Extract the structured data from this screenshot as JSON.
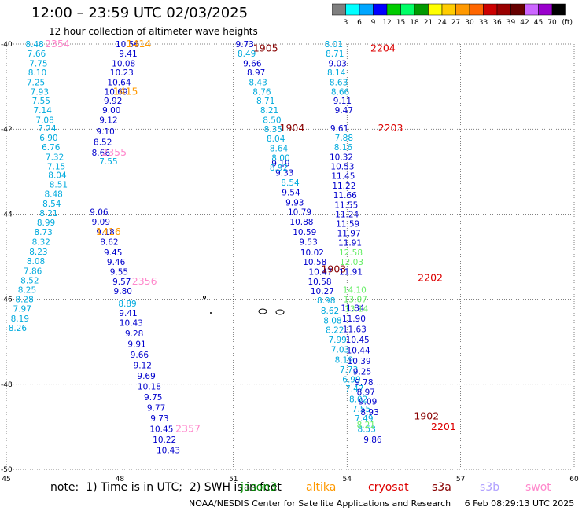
{
  "header": {
    "title": "12:00 – 23:59 UTC 02/03/2025",
    "subtitle": "12 hour collection of altimeter wave heights"
  },
  "colorbar": {
    "unit": "(ft)",
    "ticks": [
      "3",
      "6",
      "9",
      "12",
      "15",
      "18",
      "21",
      "24",
      "27",
      "30",
      "33",
      "36",
      "39",
      "42",
      "45",
      "70"
    ],
    "colors": [
      "#7f7f7f",
      "#00ffff",
      "#00a6ff",
      "#0000ff",
      "#00cc00",
      "#00ff66",
      "#009900",
      "#ffff00",
      "#ffcc00",
      "#ff9900",
      "#ff6600",
      "#cc0000",
      "#990000",
      "#660000",
      "#cc66ff",
      "#9900cc",
      "#000000"
    ]
  },
  "footer": {
    "note": "note:  1) Time is in UTC;  2) SWH is in feet",
    "credit": "NOAA/NESDIS Center for Satellite Applications and Research     6 Feb 08:29:13 UTC 2025",
    "satellites": [
      {
        "name": "jason3",
        "color": "#008800"
      },
      {
        "name": "altika",
        "color": "#ff9900"
      },
      {
        "name": "cryosat",
        "color": "#dd0000"
      },
      {
        "name": "s3a",
        "color": "#880000"
      },
      {
        "name": "s3b",
        "color": "#b0a0ff"
      },
      {
        "name": "swot",
        "color": "#ff88cc"
      }
    ]
  },
  "chart_data": {
    "type": "scatter",
    "xticks": [
      "45",
      "48",
      "51",
      "54",
      "57",
      "60"
    ],
    "yticks": [
      "-40",
      "-42",
      "-44",
      "-46",
      "-48",
      "-50"
    ],
    "xlim": [
      45,
      60
    ],
    "ylim": [
      -50,
      -40
    ],
    "grid": true,
    "tracks": [
      {
        "color": "#00aadd",
        "points": [
          {
            "x": 45.75,
            "y": -40.0,
            "v": "8.48"
          },
          {
            "x": 45.8,
            "y": -40.22,
            "v": "7.66"
          },
          {
            "x": 45.85,
            "y": -40.45,
            "v": "7.75"
          },
          {
            "x": 45.82,
            "y": -40.67,
            "v": "8.10"
          },
          {
            "x": 45.78,
            "y": -40.9,
            "v": "7.25"
          },
          {
            "x": 45.88,
            "y": -41.12,
            "v": "7.93"
          },
          {
            "x": 45.92,
            "y": -41.33,
            "v": "7.55"
          },
          {
            "x": 45.96,
            "y": -41.55,
            "v": "7.14"
          },
          {
            "x": 46.02,
            "y": -41.78,
            "v": "7.08"
          },
          {
            "x": 46.08,
            "y": -41.98,
            "v": "7.24"
          },
          {
            "x": 46.12,
            "y": -42.2,
            "v": "6.90"
          },
          {
            "x": 46.18,
            "y": -42.42,
            "v": "6.76"
          },
          {
            "x": 46.28,
            "y": -42.65,
            "v": "7.32"
          },
          {
            "x": 46.32,
            "y": -42.87,
            "v": "7.15"
          },
          {
            "x": 46.35,
            "y": -43.08,
            "v": "8.04"
          },
          {
            "x": 46.38,
            "y": -43.3,
            "v": "8.51"
          },
          {
            "x": 46.25,
            "y": -43.52,
            "v": "8.48"
          },
          {
            "x": 46.2,
            "y": -43.75,
            "v": "8.54"
          },
          {
            "x": 46.12,
            "y": -43.97,
            "v": "8.21"
          },
          {
            "x": 46.05,
            "y": -44.2,
            "v": "8.99"
          },
          {
            "x": 45.98,
            "y": -44.42,
            "v": "8.73"
          },
          {
            "x": 45.92,
            "y": -44.65,
            "v": "8.32"
          },
          {
            "x": 45.85,
            "y": -44.88,
            "v": "8.23"
          },
          {
            "x": 45.78,
            "y": -45.1,
            "v": "8.08"
          },
          {
            "x": 45.7,
            "y": -45.33,
            "v": "7.86"
          },
          {
            "x": 45.62,
            "y": -45.55,
            "v": "8.52"
          },
          {
            "x": 45.55,
            "y": -45.78,
            "v": "8.25"
          },
          {
            "x": 45.48,
            "y": -46.0,
            "v": "8.28"
          },
          {
            "x": 45.42,
            "y": -46.22,
            "v": "7.97"
          },
          {
            "x": 45.36,
            "y": -46.45,
            "v": "8.19"
          },
          {
            "x": 45.3,
            "y": -46.67,
            "v": "8.26"
          }
        ]
      },
      {
        "color": "#0000cc",
        "points": [
          {
            "x": 48.2,
            "y": -40.0,
            "v": "10.56"
          },
          {
            "x": 48.22,
            "y": -40.22,
            "v": "9.41"
          },
          {
            "x": 48.1,
            "y": -40.45,
            "v": "10.08"
          },
          {
            "x": 48.05,
            "y": -40.67,
            "v": "10.23"
          },
          {
            "x": 47.98,
            "y": -40.9,
            "v": "10.64"
          },
          {
            "x": 47.9,
            "y": -41.12,
            "v": "10.69"
          },
          {
            "x": 47.82,
            "y": -41.33,
            "v": "9.92"
          },
          {
            "x": 47.78,
            "y": -41.55,
            "v": "9.00"
          },
          {
            "x": 47.7,
            "y": -41.78,
            "v": "9.12"
          },
          {
            "x": 47.62,
            "y": -42.05,
            "v": "9.10"
          },
          {
            "x": 47.55,
            "y": -42.3,
            "v": "8.52"
          },
          {
            "x": 47.5,
            "y": -42.55,
            "v": "8.66"
          },
          {
            "x": 47.45,
            "y": -43.95,
            "v": "9.06"
          },
          {
            "x": 47.5,
            "y": -44.18,
            "v": "9.09"
          },
          {
            "x": 47.62,
            "y": -44.42,
            "v": "9.18"
          },
          {
            "x": 47.72,
            "y": -44.65,
            "v": "8.62"
          },
          {
            "x": 47.82,
            "y": -44.9,
            "v": "9.45"
          },
          {
            "x": 47.9,
            "y": -45.12,
            "v": "9.46"
          },
          {
            "x": 47.98,
            "y": -45.35,
            "v": "9.55"
          },
          {
            "x": 48.05,
            "y": -45.58,
            "v": "9.57"
          },
          {
            "x": 48.08,
            "y": -45.8,
            "v": "9.80"
          },
          {
            "x": 48.22,
            "y": -46.32,
            "v": "9.41"
          },
          {
            "x": 48.3,
            "y": -46.55,
            "v": "10.43"
          },
          {
            "x": 48.38,
            "y": -46.8,
            "v": "9.28"
          },
          {
            "x": 48.45,
            "y": -47.05,
            "v": "9.91"
          },
          {
            "x": 48.52,
            "y": -47.3,
            "v": "9.66"
          },
          {
            "x": 48.6,
            "y": -47.55,
            "v": "9.12"
          },
          {
            "x": 48.7,
            "y": -47.8,
            "v": "9.69"
          },
          {
            "x": 48.78,
            "y": -48.05,
            "v": "10.18"
          },
          {
            "x": 48.88,
            "y": -48.3,
            "v": "9.75"
          },
          {
            "x": 48.96,
            "y": -48.55,
            "v": "9.77"
          },
          {
            "x": 49.05,
            "y": -48.8,
            "v": "9.73"
          },
          {
            "x": 49.1,
            "y": -49.05,
            "v": "10.45"
          },
          {
            "x": 49.18,
            "y": -49.3,
            "v": "10.22"
          },
          {
            "x": 49.28,
            "y": -49.55,
            "v": "10.43"
          }
        ]
      },
      {
        "color": "#00aadd",
        "points": [
          {
            "x": 47.7,
            "y": -42.75,
            "v": "7.55"
          },
          {
            "x": 48.2,
            "y": -46.1,
            "v": "8.89"
          }
        ]
      },
      {
        "color": "#0000cc",
        "points": [
          {
            "x": 51.3,
            "y": -40.0,
            "v": "9.73"
          },
          {
            "x": 51.5,
            "y": -40.45,
            "v": "9.66"
          },
          {
            "x": 51.6,
            "y": -40.67,
            "v": "8.97"
          },
          {
            "x": 52.25,
            "y": -42.8,
            "v": "9.19"
          },
          {
            "x": 52.35,
            "y": -43.02,
            "v": "9.33"
          },
          {
            "x": 52.52,
            "y": -43.48,
            "v": "9.54"
          },
          {
            "x": 52.62,
            "y": -43.72,
            "v": "9.93"
          },
          {
            "x": 52.75,
            "y": -43.95,
            "v": "10.79"
          },
          {
            "x": 52.8,
            "y": -44.18,
            "v": "10.88"
          },
          {
            "x": 52.88,
            "y": -44.42,
            "v": "10.59"
          },
          {
            "x": 52.98,
            "y": -44.65,
            "v": "9.53"
          },
          {
            "x": 53.08,
            "y": -44.9,
            "v": "10.02"
          },
          {
            "x": 53.15,
            "y": -45.12,
            "v": "10.58"
          },
          {
            "x": 53.3,
            "y": -45.35,
            "v": "10.47"
          },
          {
            "x": 53.28,
            "y": -45.58,
            "v": "10.58"
          },
          {
            "x": 53.35,
            "y": -45.8,
            "v": "10.27"
          }
        ]
      },
      {
        "color": "#00aadd",
        "points": [
          {
            "x": 51.35,
            "y": -40.22,
            "v": "8.49"
          },
          {
            "x": 51.65,
            "y": -40.9,
            "v": "8.43"
          },
          {
            "x": 51.75,
            "y": -41.12,
            "v": "8.76"
          },
          {
            "x": 51.85,
            "y": -41.33,
            "v": "8.71"
          },
          {
            "x": 51.95,
            "y": -41.55,
            "v": "8.21"
          },
          {
            "x": 52.02,
            "y": -41.78,
            "v": "8.50"
          },
          {
            "x": 52.05,
            "y": -42.0,
            "v": "8.35"
          },
          {
            "x": 52.12,
            "y": -42.22,
            "v": "8.04"
          },
          {
            "x": 52.2,
            "y": -42.45,
            "v": "8.64"
          },
          {
            "x": 52.25,
            "y": -42.67,
            "v": "8.00"
          },
          {
            "x": 52.2,
            "y": -42.9,
            "v": "8.92"
          },
          {
            "x": 52.5,
            "y": -43.25,
            "v": "8.54"
          },
          {
            "x": 53.45,
            "y": -46.03,
            "v": "8.98"
          },
          {
            "x": 53.55,
            "y": -46.27,
            "v": "8.62"
          },
          {
            "x": 53.62,
            "y": -46.5,
            "v": "8.08"
          },
          {
            "x": 53.68,
            "y": -46.72,
            "v": "8.22"
          },
          {
            "x": 53.75,
            "y": -46.95,
            "v": "7.99"
          },
          {
            "x": 53.82,
            "y": -47.18,
            "v": "7.03"
          },
          {
            "x": 53.92,
            "y": -47.42,
            "v": "8.19"
          },
          {
            "x": 54.05,
            "y": -47.65,
            "v": "7.73"
          },
          {
            "x": 54.12,
            "y": -47.88,
            "v": "6.99"
          },
          {
            "x": 54.2,
            "y": -48.1,
            "v": "7.47"
          },
          {
            "x": 54.3,
            "y": -48.35,
            "v": "8.02"
          },
          {
            "x": 54.38,
            "y": -48.58,
            "v": "7.55"
          },
          {
            "x": 54.45,
            "y": -48.8,
            "v": "7.49"
          },
          {
            "x": 54.52,
            "y": -49.05,
            "v": "8.53"
          }
        ]
      },
      {
        "color": "#00aadd",
        "points": [
          {
            "x": 53.65,
            "y": -40.0,
            "v": "8.01"
          },
          {
            "x": 53.68,
            "y": -40.22,
            "v": "8.71"
          },
          {
            "x": 53.72,
            "y": -40.67,
            "v": "8.14"
          },
          {
            "x": 53.78,
            "y": -40.9,
            "v": "8.63"
          },
          {
            "x": 53.82,
            "y": -41.12,
            "v": "8.66"
          },
          {
            "x": 53.92,
            "y": -42.2,
            "v": "7.88"
          },
          {
            "x": 53.9,
            "y": -42.42,
            "v": "8.16"
          }
        ]
      },
      {
        "color": "#0000cc",
        "points": [
          {
            "x": 53.75,
            "y": -40.45,
            "v": "9.03"
          },
          {
            "x": 53.88,
            "y": -41.33,
            "v": "9.11"
          },
          {
            "x": 53.92,
            "y": -41.55,
            "v": "9.47"
          },
          {
            "x": 53.8,
            "y": -41.98,
            "v": "9.61"
          },
          {
            "x": 53.85,
            "y": -42.65,
            "v": "10.32"
          },
          {
            "x": 53.88,
            "y": -42.87,
            "v": "10.53"
          },
          {
            "x": 53.9,
            "y": -43.1,
            "v": "11.45"
          },
          {
            "x": 53.92,
            "y": -43.33,
            "v": "11.22"
          },
          {
            "x": 53.95,
            "y": -43.55,
            "v": "11.66"
          },
          {
            "x": 53.98,
            "y": -43.78,
            "v": "11.55"
          },
          {
            "x": 54.0,
            "y": -44.0,
            "v": "11.24"
          },
          {
            "x": 54.02,
            "y": -44.22,
            "v": "11.59"
          },
          {
            "x": 54.05,
            "y": -44.45,
            "v": "11.97"
          },
          {
            "x": 54.08,
            "y": -44.67,
            "v": "11.91"
          },
          {
            "x": 54.1,
            "y": -45.35,
            "v": "11.91"
          },
          {
            "x": 54.15,
            "y": -46.2,
            "v": "11.84"
          },
          {
            "x": 54.18,
            "y": -46.45,
            "v": "11.90"
          },
          {
            "x": 54.2,
            "y": -46.7,
            "v": "11.63"
          },
          {
            "x": 54.28,
            "y": -46.95,
            "v": "10.45"
          },
          {
            "x": 54.3,
            "y": -47.2,
            "v": "10.44"
          },
          {
            "x": 54.32,
            "y": -47.45,
            "v": "10.39"
          },
          {
            "x": 54.4,
            "y": -47.7,
            "v": "9.25"
          },
          {
            "x": 54.45,
            "y": -47.95,
            "v": "9.78"
          },
          {
            "x": 54.5,
            "y": -48.18,
            "v": "8.97"
          },
          {
            "x": 54.55,
            "y": -48.4,
            "v": "9.09"
          },
          {
            "x": 54.6,
            "y": -48.65,
            "v": "8.93"
          },
          {
            "x": 54.68,
            "y": -49.3,
            "v": "9.86"
          }
        ]
      },
      {
        "color": "#66ee66",
        "points": [
          {
            "x": 54.1,
            "y": -44.9,
            "v": "12.58"
          },
          {
            "x": 54.12,
            "y": -45.12,
            "v": "12.03"
          },
          {
            "x": 54.2,
            "y": -45.78,
            "v": "14.10"
          },
          {
            "x": 54.22,
            "y": -46.0,
            "v": "13.07"
          },
          {
            "x": 54.25,
            "y": -46.22,
            "v": "13.14"
          },
          {
            "x": 54.5,
            "y": -48.95,
            "v": "8.21"
          }
        ]
      }
    ],
    "time_labels": [
      {
        "x": 48.5,
        "y": -40.0,
        "v": "1414",
        "color": "#ff9900"
      },
      {
        "x": 48.15,
        "y": -41.12,
        "v": "1415",
        "color": "#ff9900"
      },
      {
        "x": 47.7,
        "y": -44.42,
        "v": "1416",
        "color": "#ff9900"
      },
      {
        "x": 46.35,
        "y": -40.0,
        "v": "2354",
        "color": "#ff88cc"
      },
      {
        "x": 47.85,
        "y": -42.55,
        "v": "2355",
        "color": "#ff88cc"
      },
      {
        "x": 48.65,
        "y": -45.58,
        "v": "2356",
        "color": "#ff88cc"
      },
      {
        "x": 49.8,
        "y": -49.05,
        "v": "2357",
        "color": "#ff88cc"
      },
      {
        "x": 51.85,
        "y": -40.1,
        "v": "1905",
        "color": "#880000"
      },
      {
        "x": 52.55,
        "y": -41.98,
        "v": "1904",
        "color": "#880000"
      },
      {
        "x": 53.65,
        "y": -45.3,
        "v": "1903",
        "color": "#880000"
      },
      {
        "x": 56.1,
        "y": -48.75,
        "v": "1902",
        "color": "#880000"
      },
      {
        "x": 54.95,
        "y": -40.1,
        "v": "2204",
        "color": "#dd0000"
      },
      {
        "x": 55.15,
        "y": -41.98,
        "v": "2203",
        "color": "#dd0000"
      },
      {
        "x": 56.2,
        "y": -45.5,
        "v": "2202",
        "color": "#dd0000"
      },
      {
        "x": 56.55,
        "y": -49.0,
        "v": "2201",
        "color": "#dd0000"
      }
    ]
  }
}
